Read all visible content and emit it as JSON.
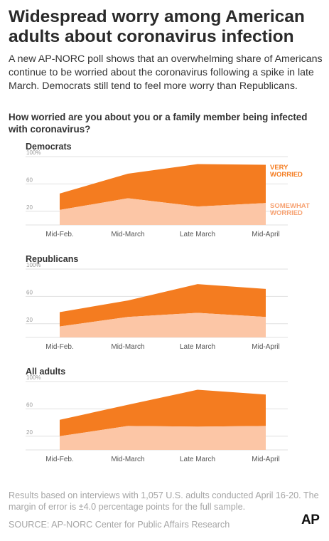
{
  "header": {
    "title": "Widespread worry among American adults about coronavirus infection",
    "intro": "A new AP-NORC poll shows that an overwhelming share of Americans continue to be worried about the coronavirus following a spike in late March. Democrats still tend to feel more worry than Republicans.",
    "question": "How worried are you about you or a family member being infected with coronavirus?"
  },
  "colors": {
    "very_worried": "#f47c20",
    "somewhat_worried": "#fcc6a6",
    "grid": "#e0e0e0",
    "axis_text": "#555555"
  },
  "chart_data": [
    {
      "type": "area",
      "stacked": true,
      "panel_label": "Democrats",
      "categories": [
        "Mid-Feb.",
        "Mid-March",
        "Late March",
        "Mid-April"
      ],
      "y_ticks": [
        "100%",
        "60",
        "20"
      ],
      "ylim": [
        0,
        100
      ],
      "series": [
        {
          "name": "SOMEWHAT WORRIED",
          "values": [
            22,
            39,
            27,
            32
          ]
        },
        {
          "name": "VERY WORRIED",
          "values": [
            24,
            36,
            62,
            56
          ]
        }
      ],
      "legend_labels": [
        "VERY WORRIED",
        "SOMEWHAT WORRIED"
      ]
    },
    {
      "type": "area",
      "stacked": true,
      "panel_label": "Republicans",
      "categories": [
        "Mid-Feb.",
        "Mid-March",
        "Late March",
        "Mid-April"
      ],
      "y_ticks": [
        "100%",
        "60",
        "20"
      ],
      "ylim": [
        0,
        100
      ],
      "series": [
        {
          "name": "SOMEWHAT WORRIED",
          "values": [
            16,
            30,
            36,
            30
          ]
        },
        {
          "name": "VERY WORRIED",
          "values": [
            21,
            24,
            42,
            41
          ]
        }
      ]
    },
    {
      "type": "area",
      "stacked": true,
      "panel_label": "All adults",
      "categories": [
        "Mid-Feb.",
        "Mid-March",
        "Late March",
        "Mid-April"
      ],
      "y_ticks": [
        "100%",
        "60",
        "20"
      ],
      "ylim": [
        0,
        100
      ],
      "series": [
        {
          "name": "SOMEWHAT WORRIED",
          "values": [
            20,
            35,
            34,
            35
          ]
        },
        {
          "name": "VERY WORRIED",
          "values": [
            24,
            31,
            54,
            46
          ]
        }
      ]
    }
  ],
  "footer": {
    "note": "Results based on interviews with 1,057 U.S. adults conducted April 16-20. The margin of error is ±4.0 percentage points for the full sample.",
    "source": "SOURCE: AP-NORC Center for Public Affairs Research",
    "logo_text": "AP"
  }
}
